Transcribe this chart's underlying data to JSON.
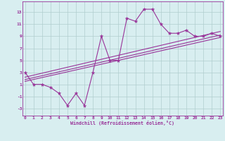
{
  "x": [
    0,
    1,
    2,
    3,
    4,
    5,
    6,
    7,
    8,
    9,
    10,
    11,
    12,
    13,
    14,
    15,
    16,
    17,
    18,
    19,
    20,
    21,
    22,
    23
  ],
  "y_main": [
    3,
    1,
    1,
    0.5,
    -0.5,
    -2.5,
    -0.5,
    -2.5,
    3,
    9,
    5,
    5,
    12,
    11.5,
    13.5,
    13.5,
    11,
    9.5,
    9.5,
    10,
    9,
    9,
    9.5,
    9
  ],
  "line1_x": [
    0,
    23
  ],
  "line1_y": [
    1.5,
    8.8
  ],
  "line2_x": [
    0,
    23
  ],
  "line2_y": [
    1.8,
    9.2
  ],
  "line3_x": [
    0,
    23
  ],
  "line3_y": [
    2.2,
    9.8
  ],
  "color": "#993399",
  "bg_color": "#d8eef0",
  "grid_color": "#b0cece",
  "xlabel": "Windchill (Refroidissement éolien,°C)",
  "yticks": [
    -3,
    -1,
    1,
    3,
    5,
    7,
    9,
    11,
    13
  ],
  "xticks": [
    0,
    1,
    2,
    3,
    4,
    5,
    6,
    7,
    8,
    9,
    10,
    11,
    12,
    13,
    14,
    15,
    16,
    17,
    18,
    19,
    20,
    21,
    22,
    23
  ],
  "ylim": [
    -4.2,
    14.8
  ],
  "xlim": [
    -0.3,
    23.3
  ]
}
